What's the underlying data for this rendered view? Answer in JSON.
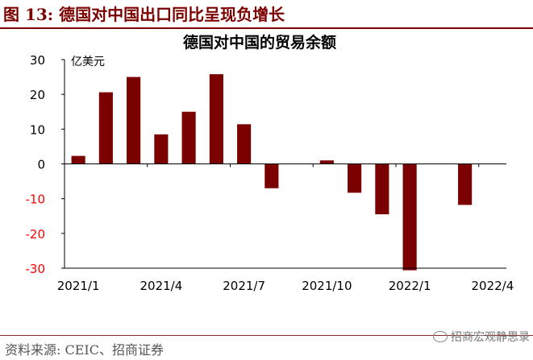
{
  "figure_title": "图 13:  德国对中国出口同比呈现负增长",
  "source_text": "资料来源:  CEIC、招商证券",
  "watermark_text": "招商宏观静思录",
  "watermark_icon": "wechat-icon",
  "chart_data": {
    "type": "bar",
    "title": "德国对中国的贸易余额",
    "ylabel": "亿美元",
    "ylim": [
      -30,
      30
    ],
    "yticks": [
      30,
      20,
      10,
      0,
      -10,
      -20,
      -30
    ],
    "x_tick_labels": [
      "2021/1",
      "2021/4",
      "2021/7",
      "2021/10",
      "2022/1",
      "2022/4"
    ],
    "categories": [
      "2021/1",
      "2021/2",
      "2021/3",
      "2021/4",
      "2021/5",
      "2021/6",
      "2021/7",
      "2021/8",
      "2021/9",
      "2021/10",
      "2021/11",
      "2021/12",
      "2022/1",
      "2022/2",
      "2022/3",
      "2022/4"
    ],
    "values": [
      2.3,
      20.6,
      25.0,
      8.5,
      15.0,
      25.8,
      11.4,
      -7.0,
      null,
      1.0,
      -8.3,
      -14.5,
      -30.6,
      null,
      -11.8,
      null
    ],
    "bar_color": "#7b0000",
    "negative_tick_color": "#ff0000",
    "grid": false
  }
}
